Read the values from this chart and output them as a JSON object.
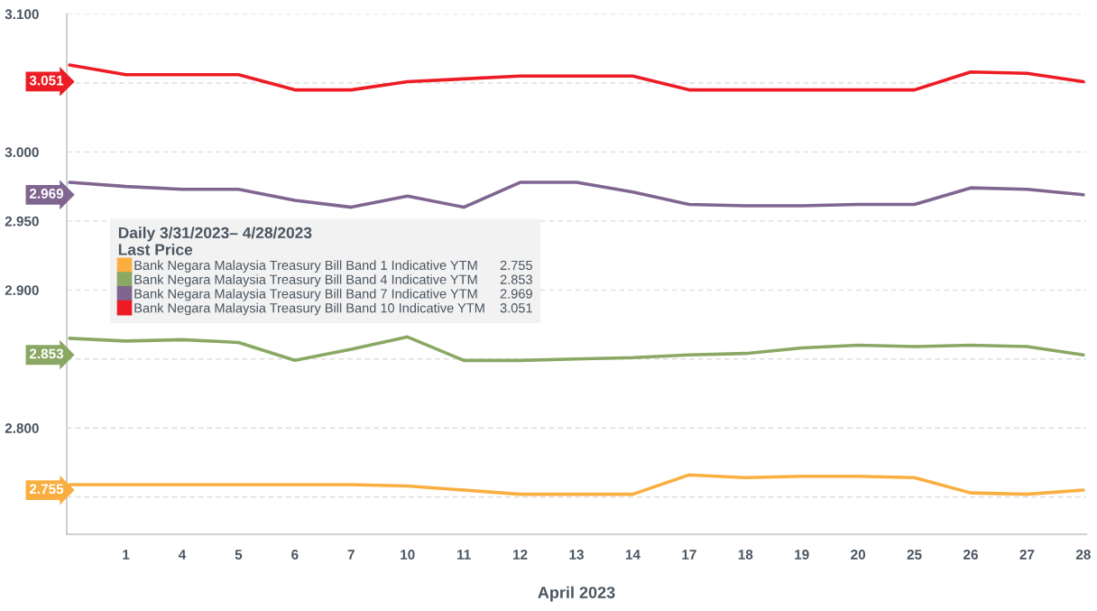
{
  "chart_data": {
    "type": "line",
    "xlabel": "April 2023",
    "legend_title": "Daily 3/31/2023– 4/28/2023\nLast Price",
    "categories": [
      null,
      "1",
      "4",
      "5",
      "6",
      "7",
      "10",
      "11",
      "12",
      "13",
      "14",
      "17",
      "18",
      "19",
      "20",
      "25",
      "26",
      "27",
      "28"
    ],
    "series": [
      {
        "name": "Bank Negara Malaysia Treasury Bill Band 1 Indicative YTM      2.755",
        "color": "#f9ae3f",
        "values": [
          2.759,
          2.759,
          2.759,
          2.759,
          2.759,
          2.759,
          2.758,
          2.755,
          2.752,
          2.752,
          2.752,
          2.766,
          2.764,
          2.765,
          2.765,
          2.764,
          2.753,
          2.752,
          2.755
        ]
      },
      {
        "name": "Bank Negara Malaysia Treasury Bill Band 4 Indicative YTM      2.853",
        "color": "#8aa864",
        "values": [
          2.865,
          2.863,
          2.864,
          2.862,
          2.849,
          2.857,
          2.866,
          2.849,
          2.849,
          2.85,
          2.851,
          2.853,
          2.854,
          2.858,
          2.86,
          2.859,
          2.86,
          2.859,
          2.853
        ]
      },
      {
        "name": "Bank Negara Malaysia Treasury Bill Band 7 Indicative YTM      2.969",
        "color": "#7f6590",
        "values": [
          2.978,
          2.975,
          2.973,
          2.973,
          2.965,
          2.96,
          2.968,
          2.96,
          2.978,
          2.978,
          2.971,
          2.962,
          2.961,
          2.961,
          2.962,
          2.962,
          2.974,
          2.973,
          2.969
        ]
      },
      {
        "name": "Bank Negara Malaysia Treasury Bill Band 10 Indicative YTM    3.051",
        "color": "#ed1c24",
        "values": [
          3.063,
          3.056,
          3.056,
          3.056,
          3.045,
          3.045,
          3.051,
          3.053,
          3.055,
          3.055,
          3.055,
          3.045,
          3.045,
          3.045,
          3.045,
          3.045,
          3.058,
          3.057,
          3.051
        ]
      }
    ],
    "annotations": [
      "2.755",
      "2.853",
      "2.969",
      "3.051"
    ],
    "ylim": [
      2.723,
      3.1
    ],
    "yticks": [
      {
        "value": 2.75,
        "label": null
      },
      {
        "value": 2.8,
        "label": "2.800"
      },
      {
        "value": 2.85,
        "label": null
      },
      {
        "value": 2.9,
        "label": "2.900"
      },
      {
        "value": 2.95,
        "label": "2.950"
      },
      {
        "value": 3.0,
        "label": "3.000"
      },
      {
        "value": 3.05,
        "label": null
      },
      {
        "value": 3.1,
        "label": "3.100"
      }
    ],
    "grid": "y",
    "legend": "left",
    "marker": "none",
    "line_style": "solid"
  }
}
